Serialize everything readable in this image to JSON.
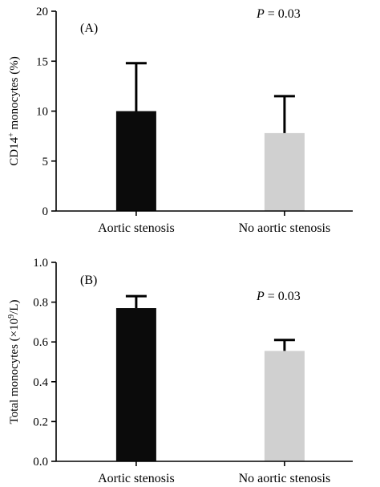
{
  "chart_data": [
    {
      "type": "bar",
      "panel_label": "(A)",
      "annotation": {
        "italic": "P",
        "rest": " = 0.03"
      },
      "ylabel": {
        "base": "CD14",
        "sup": "+",
        "tail": " monocytes (%)"
      },
      "categories": [
        "Aortic stenosis",
        "No aortic stenosis"
      ],
      "values": [
        10.0,
        7.8
      ],
      "error_upper": [
        4.8,
        3.7
      ],
      "colors": [
        "#0b0b0b",
        "#d0d0d0"
      ],
      "ylim": [
        0,
        20
      ],
      "yticks": [
        "0",
        "5",
        "10",
        "15",
        "20"
      ],
      "ytick_values": [
        0,
        5,
        10,
        15,
        20
      ],
      "grid": false
    },
    {
      "type": "bar",
      "panel_label": "(B)",
      "annotation": {
        "italic": "P",
        "rest": " = 0.03"
      },
      "ylabel": {
        "base": "Total monocytes (×10",
        "sup": "9",
        "tail": "/L)"
      },
      "categories": [
        "Aortic stenosis",
        "No aortic stenosis"
      ],
      "values": [
        0.77,
        0.555
      ],
      "error_upper": [
        0.06,
        0.055
      ],
      "colors": [
        "#0b0b0b",
        "#d0d0d0"
      ],
      "ylim": [
        0,
        1.0
      ],
      "yticks": [
        "0.0",
        "0.2",
        "0.4",
        "0.6",
        "0.8",
        "1.0"
      ],
      "ytick_values": [
        0,
        0.2,
        0.4,
        0.6,
        0.8,
        1.0
      ],
      "grid": false
    }
  ]
}
